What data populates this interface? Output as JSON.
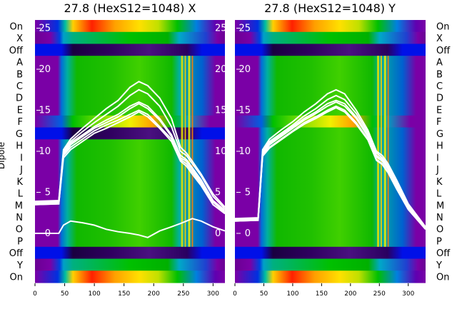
{
  "figure": {
    "ylabel": "Dipole",
    "row_labels": [
      "On",
      "X",
      "Off",
      "A",
      "B",
      "C",
      "D",
      "E",
      "F",
      "G",
      "H",
      "I",
      "J",
      "K",
      "L",
      "M",
      "N",
      "O",
      "P",
      "Off",
      "Y",
      "On"
    ],
    "colors": {
      "purple": "#7a00a6",
      "blue": "#0010e8",
      "cyan": "#00a0c8",
      "green": "#00c000",
      "trace": "#ffffff",
      "axis_text": "#000000"
    }
  },
  "chart_data": [
    {
      "type": "heatmap",
      "title": "27.8 (HexS12=1048) X",
      "x_ticks": [
        0,
        50,
        100,
        150,
        200,
        250,
        300
      ],
      "xlim": [
        0,
        320
      ],
      "rows": 22,
      "y_overlay_ticks": [
        0,
        5,
        10,
        15,
        20,
        25
      ],
      "overlay_ylim": [
        -6,
        26
      ],
      "overlay_series": [
        {
          "x": [
            0,
            40,
            48,
            60,
            80,
            100,
            120,
            140,
            160,
            175,
            190,
            210,
            230,
            245,
            255,
            265,
            280,
            300,
            320
          ],
          "y": [
            3.5,
            3.6,
            9.5,
            10.5,
            11.5,
            12.5,
            13.2,
            13.8,
            14.5,
            15,
            14.5,
            13,
            11.5,
            9,
            8.5,
            7.5,
            6,
            3.5,
            2.5
          ]
        },
        {
          "x": [
            0,
            40,
            48,
            60,
            80,
            100,
            120,
            140,
            160,
            175,
            190,
            210,
            230,
            245,
            255,
            265,
            280,
            300,
            320
          ],
          "y": [
            3.6,
            3.7,
            9.8,
            11,
            12,
            13,
            13.8,
            14.5,
            15.5,
            16,
            15.5,
            14,
            12,
            9.5,
            9,
            8,
            6.5,
            4,
            2.8
          ]
        },
        {
          "x": [
            0,
            40,
            48,
            60,
            80,
            100,
            120,
            140,
            160,
            175,
            190,
            210,
            230,
            245,
            255,
            265,
            280,
            300,
            320
          ],
          "y": [
            3.8,
            3.9,
            10,
            11.2,
            12.4,
            13.5,
            14.5,
            15.5,
            16.8,
            17.5,
            17,
            15.5,
            13,
            10,
            9.5,
            8.5,
            7,
            4.5,
            3
          ]
        },
        {
          "x": [
            0,
            40,
            48,
            60,
            80,
            100,
            120,
            140,
            160,
            175,
            190,
            210,
            230,
            245,
            255,
            265,
            280,
            300,
            320
          ],
          "y": [
            3.7,
            3.8,
            9.6,
            10.8,
            11.8,
            12.8,
            13.5,
            14.2,
            15.2,
            15.8,
            15.2,
            13.8,
            11.8,
            9.2,
            8.8,
            7.8,
            6.2,
            3.8,
            2.6
          ]
        },
        {
          "x": [
            0,
            40,
            48,
            60,
            80,
            100,
            120,
            140,
            160,
            175,
            190,
            210,
            230,
            245,
            255,
            265,
            280,
            300,
            320
          ],
          "y": [
            3.5,
            3.6,
            9.2,
            10.2,
            11.2,
            12.2,
            12.8,
            13.5,
            14.2,
            14.8,
            14.2,
            12.8,
            11.2,
            8.8,
            8.2,
            7.2,
            5.8,
            3.5,
            2.4
          ]
        },
        {
          "x": [
            0,
            40,
            48,
            60,
            80,
            100,
            120,
            140,
            160,
            175,
            190,
            210,
            230,
            245,
            255,
            265,
            280,
            300,
            320
          ],
          "y": [
            3.9,
            4,
            10.2,
            11.5,
            12.8,
            14,
            15.2,
            16.2,
            17.8,
            18.5,
            18,
            16.5,
            14,
            10.5,
            9.8,
            8.8,
            7.2,
            4.8,
            3.2
          ]
        },
        {
          "x": [
            0,
            40,
            48,
            60,
            80,
            100,
            120,
            140,
            160,
            175,
            190,
            210,
            230,
            245,
            255,
            265,
            280,
            300,
            320
          ],
          "y": [
            0,
            0,
            1,
            1.5,
            1.3,
            1,
            0.5,
            0.2,
            0,
            -0.2,
            -0.5,
            0.3,
            0.8,
            1.2,
            1.5,
            1.8,
            1.5,
            0.8,
            0.3
          ]
        }
      ]
    },
    {
      "type": "heatmap",
      "title": "27.8 (HexS12=1048) Y",
      "x_ticks": [
        0,
        50,
        100,
        150,
        200,
        250,
        300
      ],
      "xlim": [
        0,
        330
      ],
      "rows": 22,
      "y_overlay_ticks": [
        0,
        5,
        10,
        15,
        20,
        25
      ],
      "overlay_ylim": [
        -6,
        26
      ],
      "overlay_series": [
        {
          "x": [
            0,
            40,
            48,
            60,
            80,
            100,
            120,
            140,
            160,
            175,
            190,
            210,
            230,
            245,
            255,
            265,
            280,
            300,
            330
          ],
          "y": [
            1.5,
            1.6,
            9.5,
            10.5,
            11.5,
            12.5,
            13.5,
            14.2,
            15,
            15.5,
            15,
            13.5,
            11.5,
            9,
            8.5,
            7.5,
            5.5,
            3,
            0.5
          ]
        },
        {
          "x": [
            0,
            40,
            48,
            60,
            80,
            100,
            120,
            140,
            160,
            175,
            190,
            210,
            230,
            245,
            255,
            265,
            280,
            300,
            330
          ],
          "y": [
            1.6,
            1.7,
            9.8,
            11,
            12,
            13,
            14,
            14.8,
            15.8,
            16.2,
            15.8,
            14.2,
            12,
            9.5,
            9,
            8,
            6,
            3.2,
            0.6
          ]
        },
        {
          "x": [
            0,
            40,
            48,
            60,
            80,
            100,
            120,
            140,
            160,
            175,
            190,
            210,
            230,
            245,
            255,
            265,
            280,
            300,
            330
          ],
          "y": [
            1.7,
            1.8,
            10,
            11.2,
            12.2,
            13.2,
            14.3,
            15.2,
            16.3,
            16.8,
            16.3,
            14.6,
            12.3,
            9.8,
            9.2,
            8.2,
            6.2,
            3.4,
            0.7
          ]
        },
        {
          "x": [
            0,
            40,
            48,
            60,
            80,
            100,
            120,
            140,
            160,
            175,
            190,
            210,
            230,
            245,
            255,
            265,
            280,
            300,
            330
          ],
          "y": [
            1.5,
            1.6,
            9.4,
            10.4,
            11.4,
            12.4,
            13.3,
            14,
            14.8,
            15.3,
            14.8,
            13.3,
            11.4,
            8.9,
            8.4,
            7.4,
            5.4,
            2.9,
            0.5
          ]
        },
        {
          "x": [
            0,
            40,
            48,
            60,
            80,
            100,
            120,
            140,
            160,
            175,
            190,
            210,
            230,
            245,
            255,
            265,
            280,
            300,
            330
          ],
          "y": [
            1.8,
            1.9,
            10.2,
            11.5,
            12.6,
            13.6,
            14.8,
            15.8,
            17,
            17.5,
            17,
            15,
            12.6,
            10,
            9.5,
            8.5,
            6.5,
            3.6,
            0.8
          ]
        },
        {
          "x": [
            0,
            40,
            48,
            60,
            80,
            100,
            120,
            140,
            160,
            175,
            190,
            210,
            230,
            245,
            255,
            265,
            280,
            300,
            330
          ],
          "y": [
            1.6,
            1.7,
            9.6,
            10.8,
            11.8,
            12.8,
            13.8,
            14.6,
            15.5,
            16,
            15.5,
            14,
            11.8,
            9.3,
            8.8,
            7.8,
            5.8,
            3.1,
            0.6
          ]
        }
      ]
    }
  ]
}
